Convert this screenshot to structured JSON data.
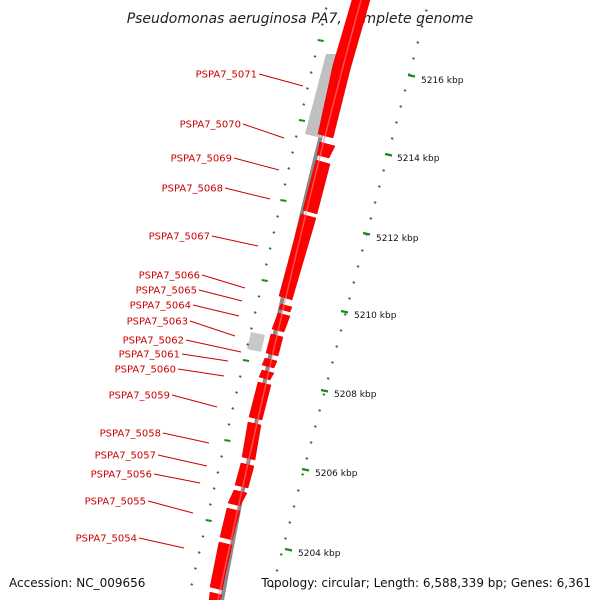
{
  "title": "Pseudomonas aeruginosa PA7, complete genome",
  "accession_text": "Accession: NC_009656",
  "summary_text": "Topology: circular; Length: 6,588,339 bp; Genes: 6,361",
  "colors": {
    "gene_fill": "#ff0000",
    "gene_label": "#cc0000",
    "grey_feature": "#c0c0c0",
    "backbone": "#8a8a8a",
    "tick_green": "#1a8a1a"
  },
  "genes": [
    {
      "label": "PSPA7_5071"
    },
    {
      "label": "PSPA7_5070"
    },
    {
      "label": "PSPA7_5069"
    },
    {
      "label": "PSPA7_5068"
    },
    {
      "label": "PSPA7_5067"
    },
    {
      "label": "PSPA7_5066"
    },
    {
      "label": "PSPA7_5065"
    },
    {
      "label": "PSPA7_5064"
    },
    {
      "label": "PSPA7_5063"
    },
    {
      "label": "PSPA7_5062"
    },
    {
      "label": "PSPA7_5061"
    },
    {
      "label": "PSPA7_5060"
    },
    {
      "label": "PSPA7_5059"
    },
    {
      "label": "PSPA7_5058"
    },
    {
      "label": "PSPA7_5057"
    },
    {
      "label": "PSPA7_5056"
    },
    {
      "label": "PSPA7_5055"
    },
    {
      "label": "PSPA7_5054"
    }
  ],
  "kbp_labels": [
    "5216 kbp",
    "5214 kbp",
    "5212 kbp",
    "5210 kbp",
    "5208 kbp",
    "5206 kbp",
    "5204 kbp"
  ]
}
